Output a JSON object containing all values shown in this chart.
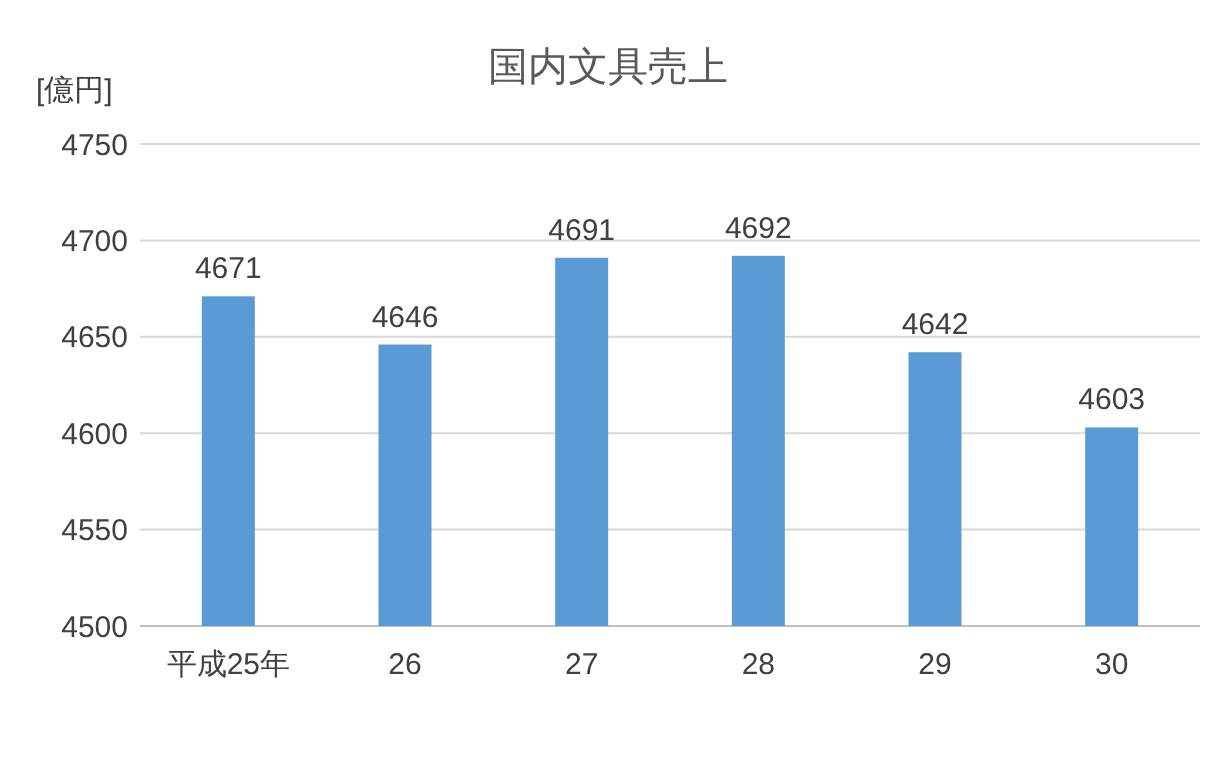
{
  "chart_data": {
    "type": "bar",
    "title": "国内文具売上",
    "ylabel": "[億円]",
    "categories": [
      "平成25年",
      "26",
      "27",
      "28",
      "29",
      "30"
    ],
    "values": [
      4671,
      4646,
      4691,
      4692,
      4642,
      4603
    ],
    "color": "#5b9bd5",
    "ylim": [
      4500,
      4750
    ],
    "yticks": [
      4500,
      4550,
      4600,
      4650,
      4700,
      4750
    ],
    "grid": "y",
    "data_labels": true
  }
}
